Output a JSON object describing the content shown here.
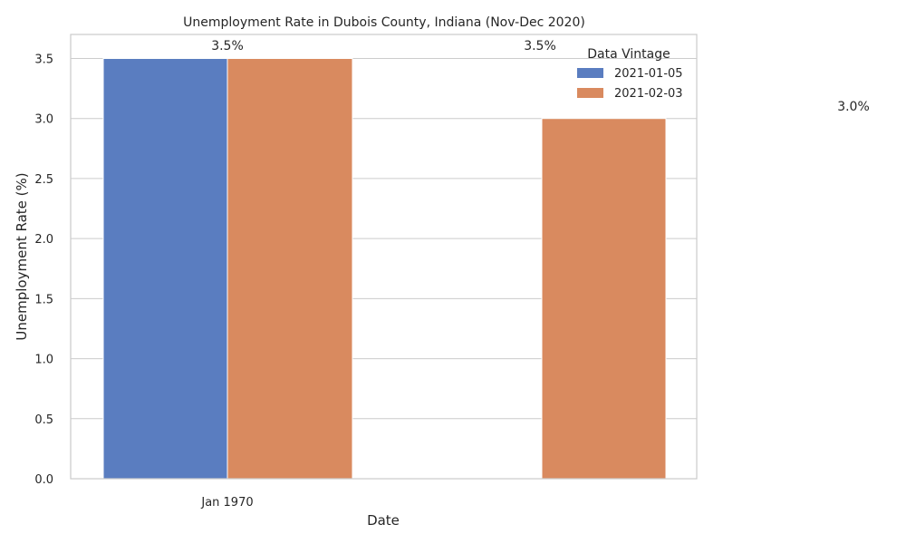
{
  "chart_data": {
    "type": "bar",
    "title": "Unemployment Rate in Dubois County, Indiana (Nov-Dec 2020)",
    "xlabel": "Date",
    "ylabel": "Unemployment Rate (%)",
    "ylim": [
      0,
      3.7
    ],
    "yticks": [
      0.0,
      0.5,
      1.0,
      1.5,
      2.0,
      2.5,
      3.0,
      3.5
    ],
    "xtick_labels": [
      "Jan 1970"
    ],
    "grid": true,
    "legend": {
      "title": "Data Vintage",
      "position": "top-right"
    },
    "bars": [
      {
        "series": "2021-01-05",
        "value": 3.5
      },
      {
        "series": "2021-02-03",
        "value": 3.5
      },
      {
        "series": "2021-02-03",
        "value": 3.0
      }
    ],
    "series": [
      {
        "name": "2021-01-05",
        "color": "#5a7dc0"
      },
      {
        "name": "2021-02-03",
        "color": "#d98a5f"
      }
    ],
    "data_labels": [
      "3.5%",
      "3.5%",
      "3.0%"
    ]
  }
}
